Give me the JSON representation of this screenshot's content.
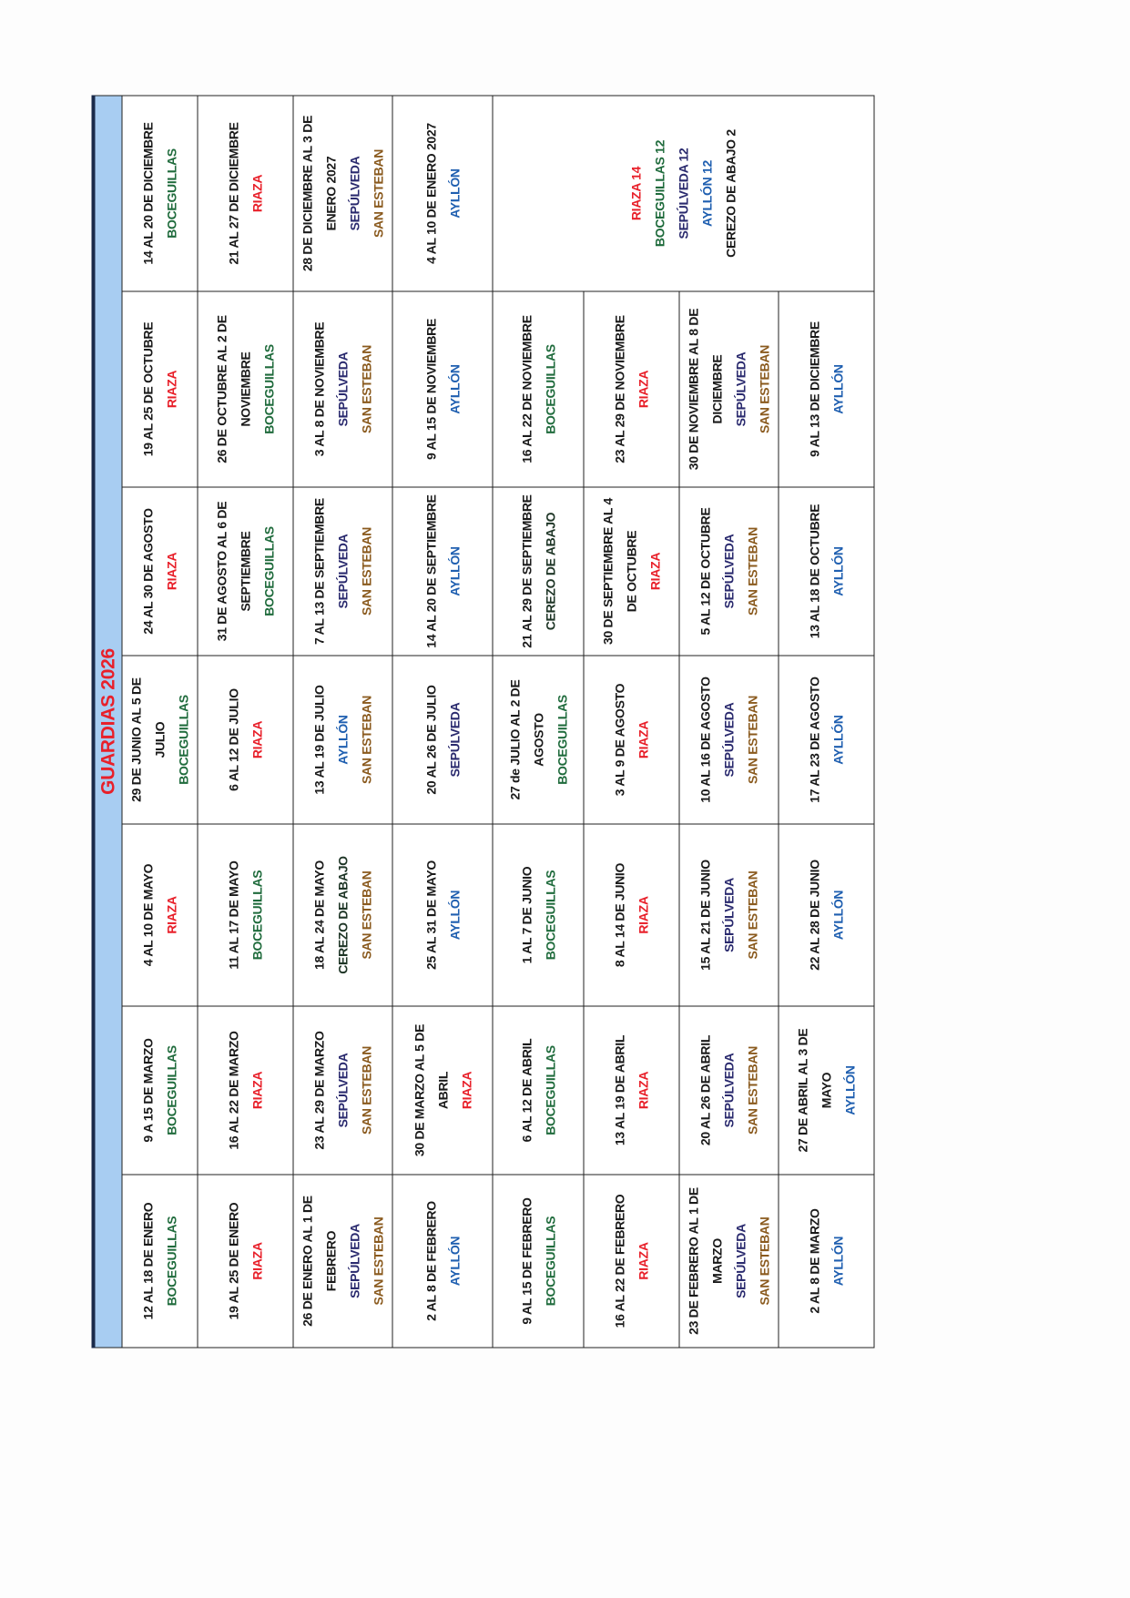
{
  "title": "GUARDIAS 2026",
  "colors": {
    "date": "#1a1a1a",
    "boceguillas": "#1f6b3c",
    "riaza": "#e8202a",
    "sepulveda": "#2a2a6e",
    "san_esteban": "#8a5a1e",
    "ayllon": "#1f5fb0",
    "cerezo": "#1e3526",
    "cerezo_total": "#1a1a1a",
    "title": "#e8202a",
    "header_bg": "#a8cdf2"
  },
  "columns": [
    [
      [
        [
          "12 AL 18 DE ENERO",
          "date"
        ],
        [
          "BOCEGUILLAS",
          "boceguillas"
        ]
      ],
      [
        [
          "19 AL 25 DE ENERO",
          "date"
        ],
        [
          "RIAZA",
          "riaza"
        ]
      ],
      [
        [
          "26 DE ENERO AL 1 DE FEBRERO",
          "date"
        ],
        [
          "SEPÚLVEDA",
          "sepulveda"
        ],
        [
          "SAN ESTEBAN",
          "san_esteban"
        ]
      ],
      [
        [
          "2 AL 8 DE FEBRERO",
          "date"
        ],
        [
          "AYLLÓN",
          "ayllon"
        ]
      ],
      [
        [
          "9 AL 15 DE FEBRERO",
          "date"
        ],
        [
          "BOCEGUILLAS",
          "boceguillas"
        ]
      ],
      [
        [
          "16 AL 22 DE FEBRERO",
          "date"
        ],
        [
          "RIAZA",
          "riaza"
        ]
      ],
      [
        [
          "23 DE FEBRERO AL 1 DE MARZO",
          "date"
        ],
        [
          "SEPÚLVEDA",
          "sepulveda"
        ],
        [
          "SAN ESTEBAN",
          "san_esteban"
        ]
      ],
      [
        [
          "2 AL 8 DE MARZO",
          "date"
        ],
        [
          "AYLLÓN",
          "ayllon"
        ]
      ]
    ],
    [
      [
        [
          "9 A 15 DE MARZO",
          "date"
        ],
        [
          "BOCEGUILLAS",
          "boceguillas"
        ]
      ],
      [
        [
          "16 AL 22 DE MARZO",
          "date"
        ],
        [
          "RIAZA",
          "riaza"
        ]
      ],
      [
        [
          "23 AL 29 DE MARZO",
          "date"
        ],
        [
          "SEPÚLVEDA",
          "sepulveda"
        ],
        [
          "SAN ESTEBAN",
          "san_esteban"
        ]
      ],
      [
        [
          "30 DE MARZO AL 5 DE ABRIL",
          "date"
        ],
        [
          "RIAZA",
          "riaza"
        ]
      ],
      [
        [
          "6 AL 12 DE ABRIL",
          "date"
        ],
        [
          "BOCEGUILLAS",
          "boceguillas"
        ]
      ],
      [
        [
          "13 AL 19 DE ABRIL",
          "date"
        ],
        [
          "RIAZA",
          "riaza"
        ]
      ],
      [
        [
          "20 AL 26 DE ABRIL",
          "date"
        ],
        [
          "SEPÚLVEDA",
          "sepulveda"
        ],
        [
          "SAN ESTEBAN",
          "san_esteban"
        ]
      ],
      [
        [
          "27 DE ABRIL AL 3 DE MAYO",
          "date"
        ],
        [
          "AYLLÓN",
          "ayllon"
        ]
      ]
    ],
    [
      [
        [
          "4 AL 10 DE MAYO",
          "date"
        ],
        [
          "RIAZA",
          "riaza"
        ]
      ],
      [
        [
          "11 AL 17 DE MAYO",
          "date"
        ],
        [
          "BOCEGUILLAS",
          "boceguillas"
        ]
      ],
      [
        [
          "18 AL 24 DE MAYO",
          "date"
        ],
        [
          "CEREZO DE ABAJO",
          "cerezo"
        ],
        [
          "SAN ESTEBAN",
          "san_esteban"
        ]
      ],
      [
        [
          "25 AL 31 DE MAYO",
          "date"
        ],
        [
          "AYLLÓN",
          "ayllon"
        ]
      ],
      [
        [
          "1 AL 7 DE JUNIO",
          "date"
        ],
        [
          "BOCEGUILLAS",
          "boceguillas"
        ]
      ],
      [
        [
          "8 AL 14 DE JUNIO",
          "date"
        ],
        [
          "RIAZA",
          "riaza"
        ]
      ],
      [
        [
          "15 AL 21 DE JUNIO",
          "date"
        ],
        [
          "SEPÚLVEDA",
          "sepulveda"
        ],
        [
          "SAN ESTEBAN",
          "san_esteban"
        ]
      ],
      [
        [
          "22 AL 28 DE JUNIO",
          "date"
        ],
        [
          "AYLLÓN",
          "ayllon"
        ]
      ]
    ],
    [
      [
        [
          "29 DE JUNIO AL 5 DE JULIO",
          "date"
        ],
        [
          "BOCEGUILLAS",
          "boceguillas"
        ]
      ],
      [
        [
          "6 AL 12 DE JULIO",
          "date"
        ],
        [
          "RIAZA",
          "riaza"
        ]
      ],
      [
        [
          "13 AL 19 DE JULIO",
          "date"
        ],
        [
          "AYLLÓN",
          "ayllon"
        ],
        [
          "SAN ESTEBAN",
          "san_esteban"
        ]
      ],
      [
        [
          "20 AL 26 DE JULIO",
          "date"
        ],
        [
          "SEPÚLVEDA",
          "sepulveda"
        ]
      ],
      [
        [
          "27 de JULIO AL 2 DE AGOSTO",
          "date"
        ],
        [
          "BOCEGUILLAS",
          "boceguillas"
        ]
      ],
      [
        [
          "3 AL 9 DE AGOSTO",
          "date"
        ],
        [
          "RIAZA",
          "riaza"
        ]
      ],
      [
        [
          "10 AL 16 DE AGOSTO",
          "date"
        ],
        [
          "SEPÚLVEDA",
          "sepulveda"
        ],
        [
          "SAN ESTEBAN",
          "san_esteban"
        ]
      ],
      [
        [
          "17 AL 23 DE AGOSTO",
          "date"
        ],
        [
          "AYLLÓN",
          "ayllon"
        ]
      ]
    ],
    [
      [
        [
          "24 AL 30 DE AGOSTO",
          "date"
        ],
        [
          "RIAZA",
          "riaza"
        ]
      ],
      [
        [
          "31 DE AGOSTO AL 6 DE SEPTIEMBRE",
          "date"
        ],
        [
          "BOCEGUILLAS",
          "boceguillas"
        ]
      ],
      [
        [
          "7 AL 13 DE SEPTIEMBRE",
          "date"
        ],
        [
          "SEPÚLVEDA",
          "sepulveda"
        ],
        [
          "SAN ESTEBAN",
          "san_esteban"
        ]
      ],
      [
        [
          "14 AL 20 DE SEPTIEMBRE",
          "date"
        ],
        [
          "AYLLÓN",
          "ayllon"
        ]
      ],
      [
        [
          "21 AL 29 DE SEPTIEMBRE",
          "date"
        ],
        [
          "CEREZO DE ABAJO",
          "cerezo"
        ]
      ],
      [
        [
          "30 DE SEPTIEMBRE AL 4 DE OCTUBRE",
          "date"
        ],
        [
          "RIAZA",
          "riaza"
        ]
      ],
      [
        [
          "5 AL 12 DE OCTUBRE",
          "date"
        ],
        [
          "SEPÚLVEDA",
          "sepulveda"
        ],
        [
          "SAN ESTEBAN",
          "san_esteban"
        ]
      ],
      [
        [
          "13 AL 18 DE OCTUBRE",
          "date"
        ],
        [
          "AYLLÓN",
          "ayllon"
        ]
      ]
    ],
    [
      [
        [
          "19 AL 25 DE OCTUBRE",
          "date"
        ],
        [
          "RIAZA",
          "riaza"
        ]
      ],
      [
        [
          "26 DE OCTUBRE AL 2 DE NOVIEMBRE",
          "date"
        ],
        [
          "BOCEGUILLAS",
          "boceguillas"
        ]
      ],
      [
        [
          "3 AL 8 DE NOVIEMBRE",
          "date"
        ],
        [
          "SEPÚLVEDA",
          "sepulveda"
        ],
        [
          "SAN ESTEBAN",
          "san_esteban"
        ]
      ],
      [
        [
          "9 AL 15 DE NOVIEMBRE",
          "date"
        ],
        [
          "AYLLÓN",
          "ayllon"
        ]
      ],
      [
        [
          "16 AL 22 DE NOVIEMBRE",
          "date"
        ],
        [
          "BOCEGUILLAS",
          "boceguillas"
        ]
      ],
      [
        [
          "23 AL 29 DE NOVIEMBRE",
          "date"
        ],
        [
          "RIAZA",
          "riaza"
        ]
      ],
      [
        [
          "30 DE NOVIEMBRE AL 8 DE DICIEMBRE",
          "date"
        ],
        [
          "SEPÚLVEDA",
          "sepulveda"
        ],
        [
          "SAN ESTEBAN",
          "san_esteban"
        ]
      ],
      [
        [
          "9 AL 13 DE DICIEMBRE",
          "date"
        ],
        [
          "AYLLÓN",
          "ayllon"
        ]
      ]
    ],
    [
      [
        [
          "14 AL 20 DE DICIEMBRE",
          "date"
        ],
        [
          "BOCEGUILLAS",
          "boceguillas"
        ]
      ],
      [
        [
          "21 AL 27 DE DICIEMBRE",
          "date"
        ],
        [
          "RIAZA",
          "riaza"
        ]
      ],
      [
        [
          "28 DE DICIEMBRE AL 3 DE ENERO 2027",
          "date"
        ],
        [
          "SEPÚLVEDA",
          "sepulveda"
        ],
        [
          "SAN ESTEBAN",
          "san_esteban"
        ]
      ],
      [
        [
          "4 AL 10 DE ENERO 2027",
          "date"
        ],
        [
          "AYLLÓN",
          "ayllon"
        ]
      ]
    ]
  ],
  "totals": [
    [
      "RIAZA 14",
      "riaza"
    ],
    [
      "BOCEGUILLAS 12",
      "boceguillas"
    ],
    [
      "SEPÚLVEDA 12",
      "sepulveda"
    ],
    [
      "AYLLÓN 12",
      "ayllon"
    ],
    [
      "CEREZO DE ABAJO 2",
      "cerezo_total"
    ]
  ]
}
